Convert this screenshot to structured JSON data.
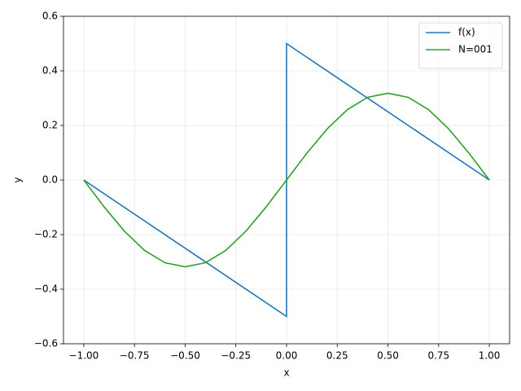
{
  "chart_data": {
    "type": "line",
    "xlabel": "x",
    "ylabel": "y",
    "series": [
      {
        "name": "f(x)",
        "color": "#1f77b4",
        "x": [
          -1,
          0,
          0,
          1
        ],
        "values": [
          0,
          -0.5,
          0.5,
          0
        ]
      },
      {
        "name": "N=001",
        "color": "#2ca02c",
        "x": [
          -1,
          -0.9,
          -0.8,
          -0.7,
          -0.6,
          -0.5,
          -0.4,
          -0.3,
          -0.2,
          -0.1,
          0,
          0.1,
          0.2,
          0.3,
          0.4,
          0.5,
          0.6,
          0.7,
          0.8,
          0.9,
          1
        ],
        "values": [
          0,
          -0.098,
          -0.187,
          -0.258,
          -0.303,
          -0.318,
          -0.303,
          -0.258,
          -0.187,
          -0.098,
          0,
          0.098,
          0.187,
          0.258,
          0.303,
          0.318,
          0.303,
          0.258,
          0.187,
          0.098,
          0
        ]
      }
    ],
    "xlim": [
      -1.1,
      1.1
    ],
    "ylim": [
      -0.6,
      0.6
    ],
    "xticks": [
      {
        "value": -1,
        "label": "−1.00"
      },
      {
        "value": -0.75,
        "label": "−0.75"
      },
      {
        "value": -0.5,
        "label": "−0.50"
      },
      {
        "value": -0.25,
        "label": "−0.25"
      },
      {
        "value": 0,
        "label": "0.00"
      },
      0.25,
      {
        "value": 0.5,
        "label": "0.50"
      },
      0.75,
      {
        "value": 1,
        "label": "1.00"
      }
    ],
    "yticks": [
      {
        "value": -0.6,
        "label": "−0.6"
      },
      {
        "value": -0.4,
        "label": "−0.4"
      },
      {
        "value": -0.2,
        "label": "−0.2"
      },
      {
        "value": 0,
        "label": "0.0"
      },
      0.2,
      0.4,
      0.6
    ],
    "grid": true,
    "legend": "upper right"
  }
}
